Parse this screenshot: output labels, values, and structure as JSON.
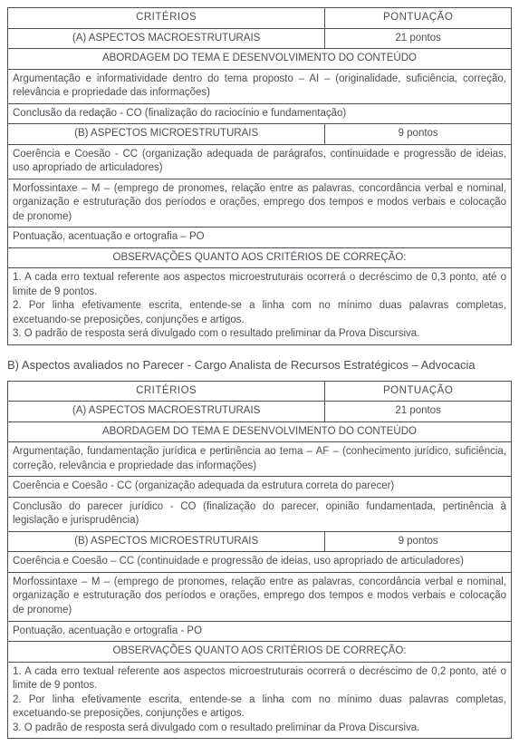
{
  "table1": {
    "headers": {
      "criteria": "CRITÉRIOS",
      "score": "PONTUAÇÃO"
    },
    "macroRow": {
      "label": "(A) ASPECTOS MACROESTRUTURAIS",
      "points": "21 pontos"
    },
    "abordagem": "ABORDAGEM DO TEMA E DESENVOLVIMENTO DO CONTEÚDO",
    "rows": {
      "r1": "Argumentação e informatividade dentro do tema proposto – AI – (originalidade, suficiência, correção, relevância e propriedade das informações)",
      "r2": "Conclusão da redação - CO (finalização do raciocínio e fundamentação)"
    },
    "microRow": {
      "label": "(B) ASPECTOS MICROESTRUTURAIS",
      "points": "9 pontos"
    },
    "microRows": {
      "m1": "Coerência e Coesão - CC (organização adequada de parágrafos, continuidade e progressão de ideias, uso apropriado de articuladores)",
      "m2": "Morfossintaxe – M – (emprego de pronomes, relação entre as palavras, concordância verbal e nominal, organização e estruturação dos períodos e orações, emprego dos tempos e modos verbais e colocação de pronome)",
      "m3": "Pontuação, acentuação e ortografia – PO"
    },
    "obsHeader": "OBSERVAÇÕES QUANTO AOS CRITÉRIOS DE CORREÇÃO:",
    "obs": {
      "o1": "1. A cada erro textual referente aos aspectos microestruturais ocorrerá o decréscimo de 0,3 ponto, até o limite de 9 pontos.",
      "o2": "2. Por linha efetivamente escrita, entende-se a linha com no mínimo duas palavras completas, excetuando-se preposições, conjunções e artigos.",
      "o3": "3. O padrão de resposta será divulgado com o resultado preliminar da Prova Discursiva."
    }
  },
  "sectionB": "B) Aspectos avaliados no Parecer - Cargo Analista de Recursos Estratégicos – Advocacia",
  "table2": {
    "headers": {
      "criteria": "CRITÉRIOS",
      "score": "PONTUAÇÃO"
    },
    "macroRow": {
      "label": "(A) ASPECTOS MACROESTRUTURAIS",
      "points": "21 pontos"
    },
    "abordagem": "ABORDAGEM DO TEMA E DESENVOLVIMENTO DO CONTEÚDO",
    "rows": {
      "r1": "Argumentação, fundamentação jurídica e pertinência ao tema – AF – (conhecimento jurídico, suficiência, correção, relevância e propriedade das informações)",
      "r2": "Coerência e Coesão - CC (organização adequada da estrutura correta do parecer)",
      "r3": "Conclusão do parecer jurídico - CO (finalização do parecer, opinião fundamentada, pertinência à legislação e jurisprudência)"
    },
    "microRow": {
      "label": "(B) ASPECTOS MICROESTRUTURAIS",
      "points": "9 pontos"
    },
    "microRows": {
      "m1": "Coerência e Coesão – CC (continuidade e progressão de ideias, uso apropriado de articuladores)",
      "m2": "Morfossintaxe – M – (emprego de pronomes, relação entre as palavras, concordância verbal e nominal, organização e estruturação dos períodos e orações, emprego dos tempos e modos verbais e colocação de pronome)",
      "m3": "Pontuação, acentuação e ortografia - PO"
    },
    "obsHeader": "OBSERVAÇÕES QUANTO AOS CRITÉRIOS DE CORREÇÃO:",
    "obs": {
      "o1": "1. A cada erro textual referente aos aspectos microestruturais ocorrerá o decréscimo de 0,2 ponto, até o limite de 9 pontos.",
      "o2": "2. Por linha efetivamente escrita, entende-se a linha com no mínimo duas palavras completas, excetuando-se preposições, conjunções e artigos.",
      "o3": "3. O padrão de resposta será divulgado com o resultado preliminar da Prova Discursiva."
    }
  }
}
